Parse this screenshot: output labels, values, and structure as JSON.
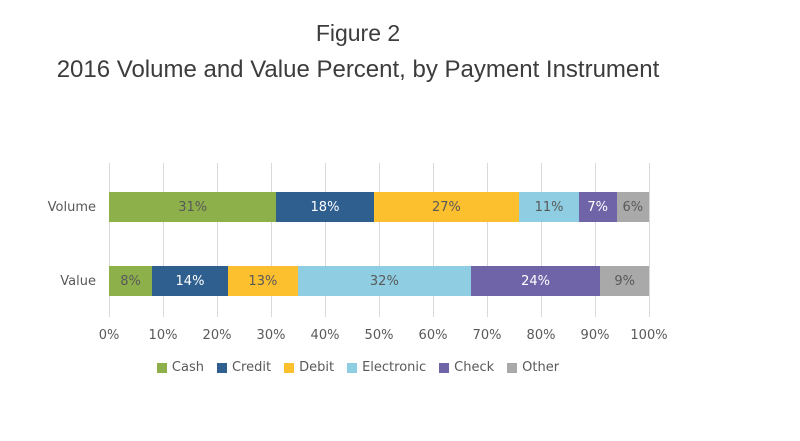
{
  "chart_data": {
    "type": "bar",
    "orientation": "horizontal",
    "stacked": true,
    "title": "Figure 2",
    "subtitle": "2016 Volume and Value Percent, by Payment Instrument",
    "categories": [
      "Volume",
      "Value"
    ],
    "series": [
      {
        "name": "Cash",
        "color": "#8DB04B",
        "label_color": "#595959",
        "values": [
          31,
          8
        ]
      },
      {
        "name": "Credit",
        "color": "#2E5F8F",
        "label_color": "#FFFFFF",
        "values": [
          18,
          14
        ]
      },
      {
        "name": "Debit",
        "color": "#FCBF2E",
        "label_color": "#595959",
        "values": [
          27,
          13
        ]
      },
      {
        "name": "Electronic",
        "color": "#8FCEE2",
        "label_color": "#595959",
        "values": [
          11,
          32
        ]
      },
      {
        "name": "Check",
        "color": "#7064A9",
        "label_color": "#FFFFFF",
        "values": [
          7,
          24
        ]
      },
      {
        "name": "Other",
        "color": "#A9A9A9",
        "label_color": "#595959",
        "values": [
          6,
          9
        ]
      }
    ],
    "data_label_suffix": "%",
    "x_axis": {
      "min": 0,
      "max": 100,
      "ticks": [
        "0%",
        "10%",
        "20%",
        "30%",
        "40%",
        "50%",
        "60%",
        "70%",
        "80%",
        "90%",
        "100%"
      ]
    },
    "grid": true,
    "gridline_color": "#D9D9D9",
    "axis_text_color": "#595959",
    "legend_position": "bottom"
  }
}
